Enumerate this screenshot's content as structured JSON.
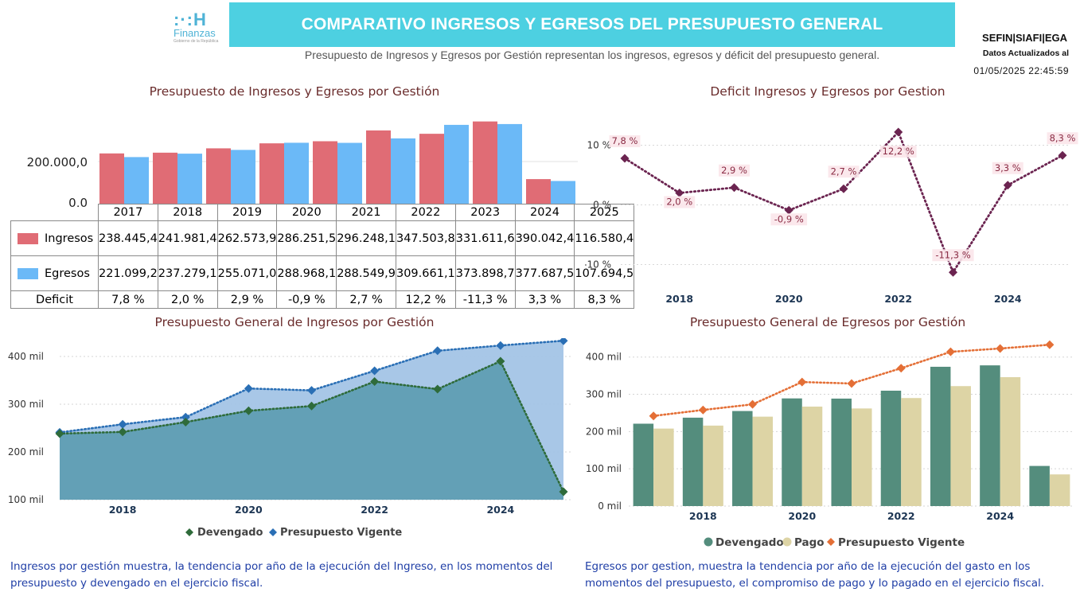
{
  "header": {
    "logo_mark": ":·:H",
    "logo_name": "Finanzas",
    "logo_sub": "Gobierno de la República",
    "title": "COMPARATIVO INGRESOS Y EGRESOS DEL PRESUPUESTO GENERAL",
    "subtitle": "Presupuesto de Ingresos y Egresos por Gestión representan los ingresos, egresos y déficit del presupuesto general.",
    "source": "SEFIN|SIAFI|EGA",
    "updated_label": "Datos Actualizados al",
    "updated_timestamp": "01/05/2025 22:45:59"
  },
  "colors": {
    "ingresos": "#e06c75",
    "egresos": "#6bb9f7",
    "deficit_line": "#6b2450",
    "devengado_green": "#2e6b3a",
    "vigente_blue": "#2a6fb5",
    "area_dark": "#5f9eb3",
    "area_light": "#a3c4e6",
    "bar_devengado": "#548d7d",
    "bar_pago": "#ddd4a5",
    "line_vigente": "#e46f36"
  },
  "chart_data": [
    {
      "id": "ingresos-egresos",
      "type": "bar",
      "title": "Presupuesto de Ingresos y Egresos por Gestión",
      "categories": [
        "2017",
        "2018",
        "2019",
        "2020",
        "2021",
        "2022",
        "2023",
        "2024",
        "2025"
      ],
      "series": [
        {
          "name": "Ingresos",
          "values": [
            238445.4,
            241981.4,
            262573.9,
            286251.5,
            296248.1,
            347503.8,
            331611.6,
            390042.4,
            116580.4
          ]
        },
        {
          "name": "Egresos",
          "values": [
            221099.2,
            237279.1,
            255071.0,
            288968.1,
            288549.9,
            309661.1,
            373898.7,
            377687.5,
            107694.5
          ]
        }
      ],
      "y_ticks": [
        "0,0",
        "200.000,0"
      ],
      "ylim": [
        0,
        400000
      ],
      "table": {
        "row_labels": [
          "Ingresos",
          "Egresos",
          "Deficit"
        ],
        "ingresos": [
          "238.445,4",
          "241.981,4",
          "262.573,9",
          "286.251,5",
          "296.248,1",
          "347.503,8",
          "331.611,6",
          "390.042,4",
          "116.580,4"
        ],
        "egresos": [
          "221.099,2",
          "237.279,1",
          "255.071,0",
          "288.968,1",
          "288.549,9",
          "309.661,1",
          "373.898,7",
          "377.687,5",
          "107.694,5"
        ],
        "deficit": [
          "7,8 %",
          "2,0 %",
          "2,9 %",
          "-0,9 %",
          "2,7 %",
          "12,2 %",
          "-11,3 %",
          "3,3 %",
          "8,3 %"
        ]
      }
    },
    {
      "id": "deficit",
      "type": "line",
      "title": "Deficit Ingresos y Egresos por Gestion",
      "x": [
        2017,
        2018,
        2019,
        2020,
        2021,
        2022,
        2023,
        2024,
        2025
      ],
      "values": [
        7.8,
        2.0,
        2.9,
        -0.9,
        2.7,
        12.2,
        -11.3,
        3.3,
        8.3
      ],
      "data_labels": [
        "7,8 %",
        "2,0 %",
        "2,9 %",
        "-0,9 %",
        "2,7 %",
        "12,2 %",
        "-11,3 %",
        "3,3 %",
        "8,3 %"
      ],
      "x_ticks": [
        "2018",
        "2020",
        "2022",
        "2024"
      ],
      "y_ticks": [
        "-10 %",
        "0 %",
        "10 %"
      ],
      "ylim": [
        -13,
        13
      ]
    },
    {
      "id": "ingresos-area",
      "type": "area",
      "title": "Presupuesto General de Ingresos por Gestión",
      "x": [
        2017,
        2018,
        2019,
        2020,
        2021,
        2022,
        2023,
        2024,
        2025
      ],
      "series": [
        {
          "name": "Devengado",
          "values": [
            238.4,
            242.0,
            262.6,
            286.3,
            296.2,
            347.5,
            331.6,
            390.0,
            116.6
          ]
        },
        {
          "name": "Presupuesto Vigente",
          "values": [
            241,
            258,
            273,
            333,
            329,
            370,
            412,
            423,
            433
          ]
        }
      ],
      "x_ticks": [
        "2018",
        "2020",
        "2022",
        "2024"
      ],
      "y_ticks": [
        "100 mil",
        "200 mil",
        "300 mil",
        "400 mil"
      ],
      "ylim": [
        100,
        430
      ]
    },
    {
      "id": "egresos-combo",
      "type": "bar",
      "title": "Presupuesto General de Egresos por Gestión",
      "x": [
        2017,
        2018,
        2019,
        2020,
        2021,
        2022,
        2023,
        2024,
        2025
      ],
      "series": [
        {
          "name": "Devengado",
          "values": [
            221.1,
            237.3,
            255.1,
            289.0,
            288.5,
            309.7,
            373.9,
            377.7,
            107.7
          ]
        },
        {
          "name": "Pago",
          "values": [
            208,
            216,
            240,
            267,
            262,
            290,
            322,
            346,
            85
          ]
        },
        {
          "name": "Presupuesto Vigente",
          "values": [
            242,
            258,
            273,
            333,
            329,
            370,
            414,
            423,
            433
          ]
        }
      ],
      "x_ticks": [
        "2018",
        "2020",
        "2022",
        "2024"
      ],
      "y_ticks": [
        "0 mil",
        "100 mil",
        "200 mil",
        "300 mil",
        "400 mil"
      ],
      "ylim": [
        0,
        440
      ]
    }
  ],
  "notes": {
    "ingresos": "Ingresos por gestión muestra, la tendencia por año de la ejecución del Ingreso, en los momentos del presupuesto y devengado en el ejercicio fiscal.",
    "egresos": "Egresos por gestion, muestra la tendencia por año de la ejecución del gasto en los momentos del presupuesto, el compromiso de pago y lo pagado en el ejercicio fiscal."
  }
}
